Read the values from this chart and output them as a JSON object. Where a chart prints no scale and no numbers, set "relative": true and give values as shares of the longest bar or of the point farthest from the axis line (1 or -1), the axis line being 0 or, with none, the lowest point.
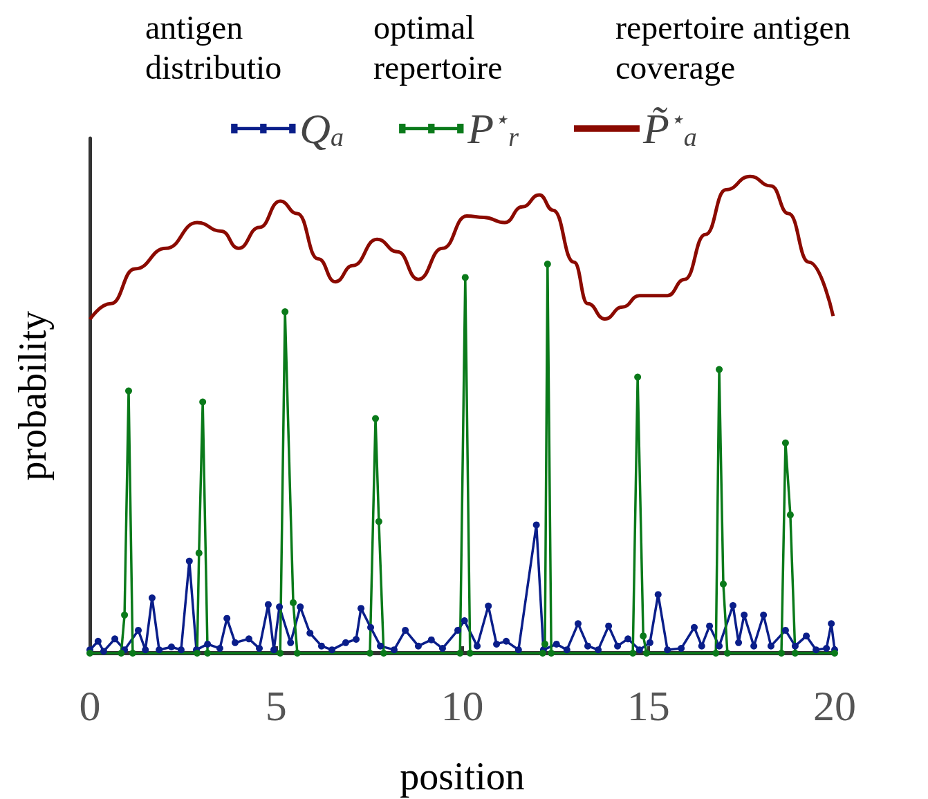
{
  "chart_data": {
    "type": "line",
    "relative": true,
    "xlabel": "position",
    "ylabel": "probability",
    "xlim": [
      0,
      20
    ],
    "xticks": [
      0,
      5,
      10,
      15,
      20
    ],
    "grid": false,
    "legend": "top",
    "line_style": "solid",
    "annotations": [
      "antigen distributio",
      "optimal repertoire",
      "repertoire antigen coverage"
    ],
    "series": [
      {
        "name": "Q$_{a}$",
        "color": "#0a1e8a",
        "marker": "circle",
        "x": [
          0.0,
          0.22,
          0.37,
          0.67,
          0.93,
          1.3,
          1.49,
          1.67,
          1.86,
          2.19,
          2.45,
          2.67,
          2.86,
          3.16,
          3.49,
          3.68,
          3.9,
          4.27,
          4.55,
          4.79,
          4.94,
          5.09,
          5.39,
          5.65,
          5.91,
          6.22,
          6.5,
          6.87,
          7.15,
          7.28,
          7.54,
          7.8,
          8.17,
          8.47,
          8.82,
          9.17,
          9.47,
          9.88,
          10.06,
          10.4,
          10.7,
          10.92,
          11.18,
          11.51,
          11.99,
          12.18,
          12.53,
          12.81,
          13.11,
          13.37,
          13.65,
          13.93,
          14.17,
          14.45,
          14.76,
          15.04,
          15.26,
          15.51,
          15.88,
          16.23,
          16.43,
          16.64,
          16.9,
          17.27,
          17.42,
          17.57,
          17.83,
          18.09,
          18.29,
          18.68,
          18.94,
          19.24,
          19.5,
          19.78,
          19.91,
          20.0
        ],
        "values": [
          0.007,
          0.025,
          0.004,
          0.03,
          0.007,
          0.048,
          0.007,
          0.116,
          0.007,
          0.013,
          0.007,
          0.193,
          0.007,
          0.019,
          0.01,
          0.073,
          0.022,
          0.03,
          0.01,
          0.102,
          0.007,
          0.097,
          0.022,
          0.097,
          0.042,
          0.015,
          0.007,
          0.022,
          0.029,
          0.094,
          0.054,
          0.015,
          0.007,
          0.048,
          0.015,
          0.028,
          0.01,
          0.048,
          0.068,
          0.015,
          0.099,
          0.019,
          0.025,
          0.007,
          0.269,
          0.007,
          0.019,
          0.007,
          0.062,
          0.015,
          0.007,
          0.057,
          0.015,
          0.03,
          0.007,
          0.022,
          0.123,
          0.007,
          0.01,
          0.054,
          0.015,
          0.057,
          0.015,
          0.1,
          0.022,
          0.08,
          0.015,
          0.08,
          0.015,
          0.048,
          0.015,
          0.036,
          0.007,
          0.01,
          0.062,
          0.007
        ]
      },
      {
        "name": "P$^{⋆}$$_{r}$",
        "color": "#0a7a1a",
        "marker": "circle",
        "x": [
          0.0,
          0.84,
          0.93,
          1.04,
          1.15,
          2.88,
          2.93,
          3.03,
          3.16,
          5.11,
          5.24,
          5.46,
          5.57,
          7.52,
          7.67,
          7.76,
          7.89,
          9.94,
          10.08,
          10.21,
          12.16,
          12.22,
          12.29,
          12.39,
          14.58,
          14.71,
          14.86,
          14.95,
          16.81,
          16.9,
          17.01,
          17.12,
          18.57,
          18.68,
          18.81,
          18.94,
          20.0
        ],
        "values": [
          0,
          0,
          0.08,
          0.55,
          0,
          0,
          0.21,
          0.527,
          0,
          0,
          0.716,
          0.106,
          0,
          0,
          0.492,
          0.276,
          0,
          0,
          0.788,
          0,
          0,
          0.019,
          0.816,
          0,
          0,
          0.579,
          0.036,
          0,
          0,
          0.595,
          0.145,
          0,
          0,
          0.441,
          0.29,
          0,
          0
        ]
      },
      {
        "name": "P̃$^{⋆}$$_{a}$",
        "color": "#8b0a00",
        "marker": "none",
        "x": [
          0.0,
          0.56,
          1.21,
          2.04,
          2.88,
          3.53,
          3.99,
          4.55,
          5.11,
          5.57,
          6.13,
          6.59,
          7.06,
          7.71,
          8.26,
          8.82,
          9.47,
          10.12,
          10.58,
          11.14,
          11.61,
          12.07,
          12.44,
          13.0,
          13.37,
          13.83,
          14.3,
          14.76,
          15.51,
          15.97,
          16.53,
          17.08,
          17.73,
          18.29,
          18.76,
          19.31,
          19.96
        ],
        "values": [
          0.7,
          0.733,
          0.806,
          0.849,
          0.903,
          0.885,
          0.849,
          0.893,
          0.948,
          0.922,
          0.827,
          0.779,
          0.813,
          0.868,
          0.842,
          0.784,
          0.849,
          0.917,
          0.914,
          0.903,
          0.936,
          0.961,
          0.929,
          0.82,
          0.733,
          0.701,
          0.726,
          0.75,
          0.75,
          0.784,
          0.878,
          0.972,
          1,
          0.98,
          0.922,
          0.82,
          0.707
        ]
      }
    ]
  }
}
